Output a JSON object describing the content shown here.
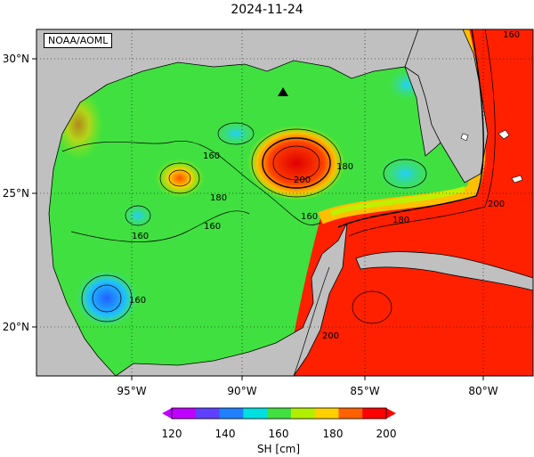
{
  "title": "2024-11-24",
  "credit": "NOAA/AOML",
  "map": {
    "lat_labels": [
      "30°N",
      "25°N",
      "20°N"
    ],
    "lon_labels": [
      "95°W",
      "90°W",
      "85°W",
      "80°W"
    ],
    "contour_labels": [
      "160",
      "160",
      "160",
      "160",
      "160",
      "180",
      "180",
      "180",
      "200",
      "200",
      "200",
      "160"
    ],
    "marker": "triangle"
  },
  "colorbar": {
    "ticks": [
      "120",
      "140",
      "160",
      "180",
      "200"
    ],
    "label": "SH [cm]",
    "colors": [
      "#c000ff",
      "#6040ff",
      "#2080ff",
      "#00e0e0",
      "#40e040",
      "#b0f000",
      "#ffd000",
      "#ff6000",
      "#ff0000"
    ]
  },
  "colors": {
    "land": "#c0c0c0",
    "high": "#ff2000",
    "mid": "#40e040",
    "low": "#2090ff"
  }
}
